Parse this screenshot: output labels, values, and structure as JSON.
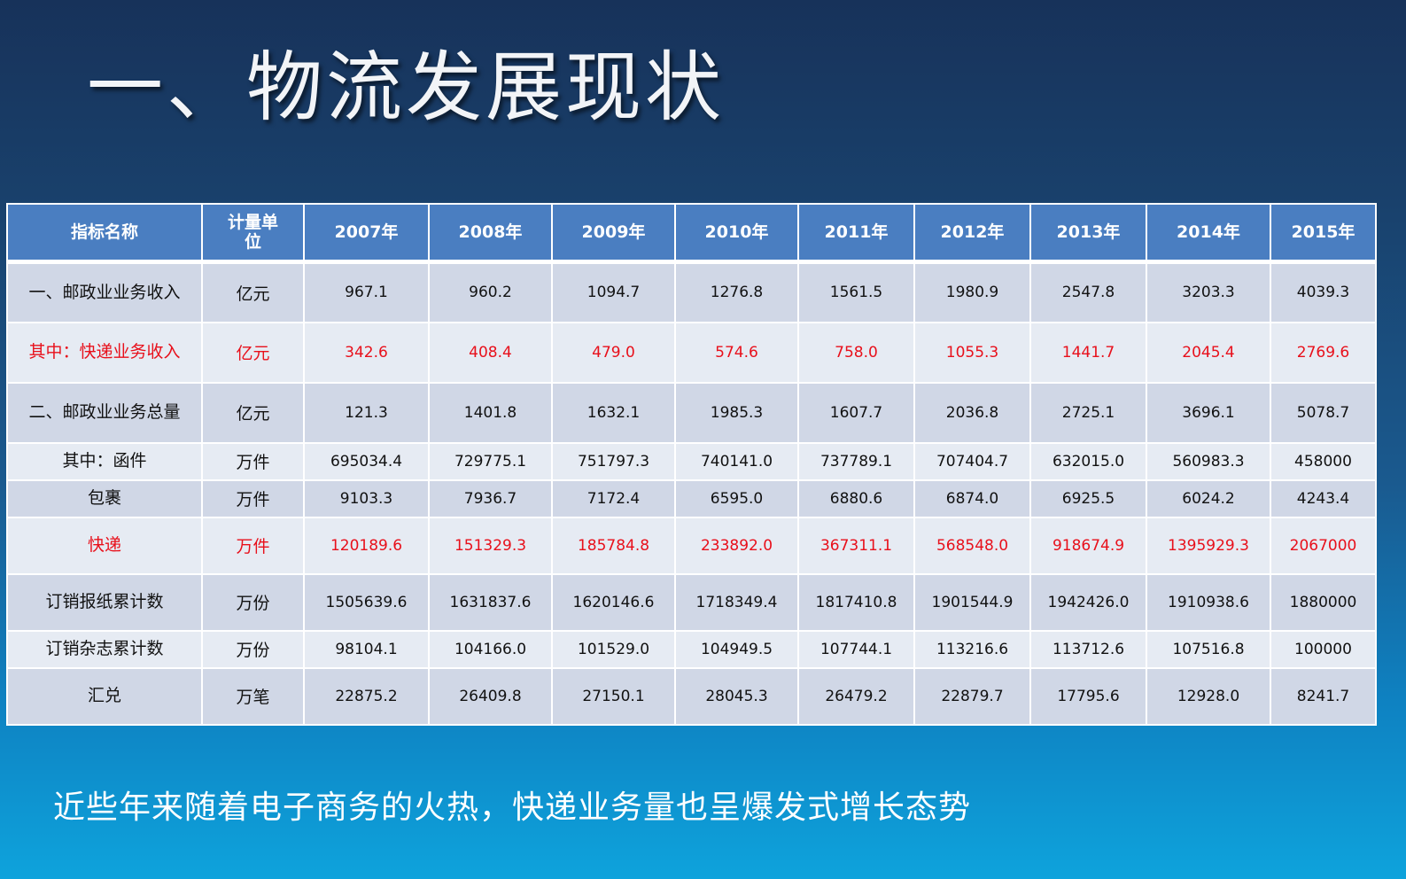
{
  "title": "一、物流发展现状",
  "table": {
    "headers": [
      "指标名称",
      "计量单位",
      "2007年",
      "2008年",
      "2009年",
      "2010年",
      "2011年",
      "2012年",
      "2013年",
      "2014年",
      "2015年"
    ],
    "rows": [
      {
        "name": "一、邮政业业务收入",
        "unit": "亿元",
        "values": [
          "967.1",
          "960.2",
          "1094.7",
          "1276.8",
          "1561.5",
          "1980.9",
          "2547.8",
          "3203.3",
          "4039.3"
        ],
        "highlight": false
      },
      {
        "name": "其中：快递业务收入",
        "unit": "亿元",
        "values": [
          "342.6",
          "408.4",
          "479.0",
          "574.6",
          "758.0",
          "1055.3",
          "1441.7",
          "2045.4",
          "2769.6"
        ],
        "highlight": true
      },
      {
        "name": "二、邮政业业务总量",
        "unit": "亿元",
        "values": [
          "121.3",
          "1401.8",
          "1632.1",
          "1985.3",
          "1607.7",
          "2036.8",
          "2725.1",
          "3696.1",
          "5078.7"
        ],
        "highlight": false
      },
      {
        "name": "其中：函件",
        "unit": "万件",
        "values": [
          "695034.4",
          "729775.1",
          "751797.3",
          "740141.0",
          "737789.1",
          "707404.7",
          "632015.0",
          "560983.3",
          "458000"
        ],
        "highlight": false
      },
      {
        "name": "包裹",
        "unit": "万件",
        "values": [
          "9103.3",
          "7936.7",
          "7172.4",
          "6595.0",
          "6880.6",
          "6874.0",
          "6925.5",
          "6024.2",
          "4243.4"
        ],
        "highlight": false
      },
      {
        "name": "快递",
        "unit": "万件",
        "values": [
          "120189.6",
          "151329.3",
          "185784.8",
          "233892.0",
          "367311.1",
          "568548.0",
          "918674.9",
          "1395929.3",
          "2067000"
        ],
        "highlight": true
      },
      {
        "name": "订销报纸累计数",
        "unit": "万份",
        "values": [
          "1505639.6",
          "1631837.6",
          "1620146.6",
          "1718349.4",
          "1817410.8",
          "1901544.9",
          "1942426.0",
          "1910938.6",
          "1880000"
        ],
        "highlight": false
      },
      {
        "name": "订销杂志累计数",
        "unit": "万份",
        "values": [
          "98104.1",
          "104166.0",
          "101529.0",
          "104949.5",
          "107744.1",
          "113216.6",
          "113712.6",
          "107516.8",
          "100000"
        ],
        "highlight": false
      },
      {
        "name": "汇兑",
        "unit": "万笔",
        "values": [
          "22875.2",
          "26409.8",
          "27150.1",
          "28045.3",
          "26479.2",
          "22879.7",
          "17795.6",
          "12928.0",
          "8241.7"
        ],
        "highlight": false
      }
    ]
  },
  "note": "近些年来随着电子商务的火热，快递业务量也呈爆发式增长态势",
  "colors": {
    "header": "#4a7ec1",
    "row": "#d0d7e6",
    "row_alt": "#e6ebf3",
    "highlight_text": "#e8101b"
  }
}
